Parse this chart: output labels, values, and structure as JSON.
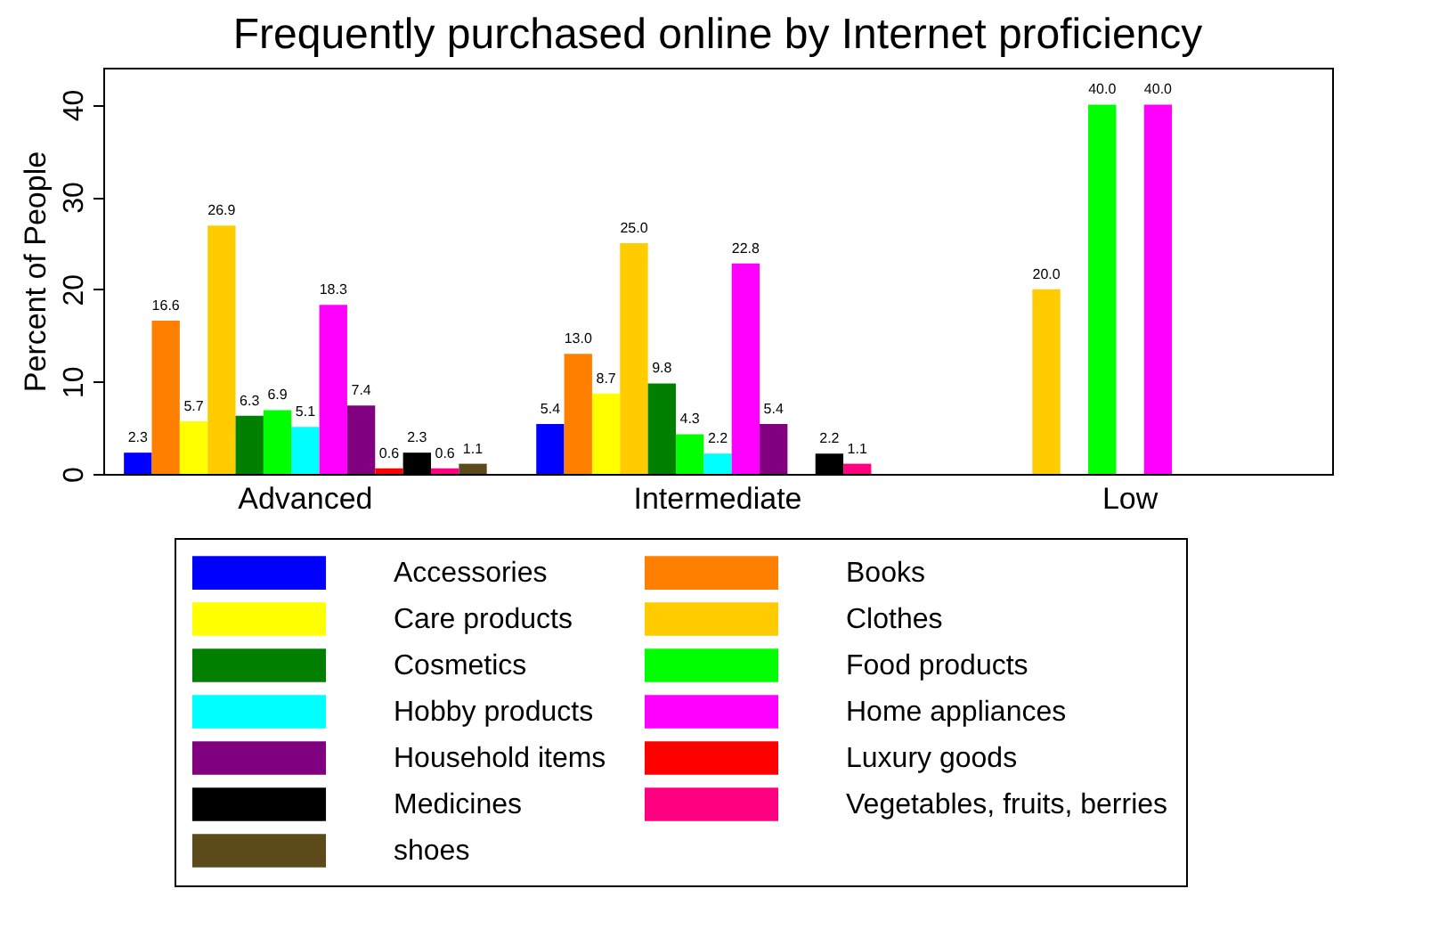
{
  "chart_data": {
    "type": "bar",
    "title": "Frequently purchased online by Internet proficiency",
    "ylabel": "Percent of People",
    "categories": [
      "Advanced",
      "Intermediate",
      "Low"
    ],
    "series": [
      {
        "name": "Accessories",
        "color": "#0000ff",
        "values": [
          2.3,
          5.4,
          null
        ],
        "value_labels": [
          "2.3",
          "5.4",
          null
        ]
      },
      {
        "name": "Books",
        "color": "#ff8000",
        "values": [
          16.6,
          13,
          null
        ],
        "value_labels": [
          "16.6",
          "13.0",
          null
        ]
      },
      {
        "name": "Care products",
        "color": "#ffff00",
        "values": [
          5.7,
          8.7,
          null
        ],
        "value_labels": [
          "5.7",
          "8.7",
          null
        ]
      },
      {
        "name": "Clothes",
        "color": "#ffcc00",
        "values": [
          26.9,
          25,
          20
        ],
        "value_labels": [
          "26.9",
          "25.0",
          "20.0"
        ]
      },
      {
        "name": "Cosmetics",
        "color": "#007f00",
        "values": [
          6.3,
          9.8,
          null
        ],
        "value_labels": [
          "6.3",
          "9.8",
          null
        ]
      },
      {
        "name": "Food products",
        "color": "#00ff00",
        "values": [
          6.9,
          4.3,
          40
        ],
        "value_labels": [
          "6.9",
          "4.3",
          "40.0"
        ]
      },
      {
        "name": "Hobby products",
        "color": "#00ffff",
        "values": [
          5.1,
          2.2,
          null
        ],
        "value_labels": [
          "5.1",
          "2.2",
          null
        ]
      },
      {
        "name": "Home appliances",
        "color": "#ff00ff",
        "values": [
          18.3,
          22.8,
          40
        ],
        "value_labels": [
          "18.3",
          "22.8",
          "40.0"
        ]
      },
      {
        "name": "Household items",
        "color": "#800080",
        "values": [
          7.4,
          5.4,
          null
        ],
        "value_labels": [
          "7.4",
          "5.4",
          null
        ]
      },
      {
        "name": "Luxury goods",
        "color": "#ff0000",
        "values": [
          0.6,
          null,
          null
        ],
        "value_labels": [
          "0.6",
          null,
          null
        ]
      },
      {
        "name": "Medicines",
        "color": "#000000",
        "values": [
          2.3,
          2.2,
          null
        ],
        "value_labels": [
          "2.3",
          "2.2",
          null
        ]
      },
      {
        "name": "Vegetables, fruits, berries",
        "color": "#ff0080",
        "values": [
          0.6,
          1.1,
          null
        ],
        "value_labels": [
          "0.6",
          "1.1",
          null
        ]
      },
      {
        "name": "shoes",
        "color": "#5c4a1a",
        "values": [
          1.1,
          null,
          null
        ],
        "value_labels": [
          "1.1",
          null,
          null
        ]
      }
    ],
    "ylim": [
      0,
      44
    ],
    "yticks": [
      0,
      10,
      20,
      30,
      40
    ],
    "grid": false,
    "legend": "bottom"
  }
}
